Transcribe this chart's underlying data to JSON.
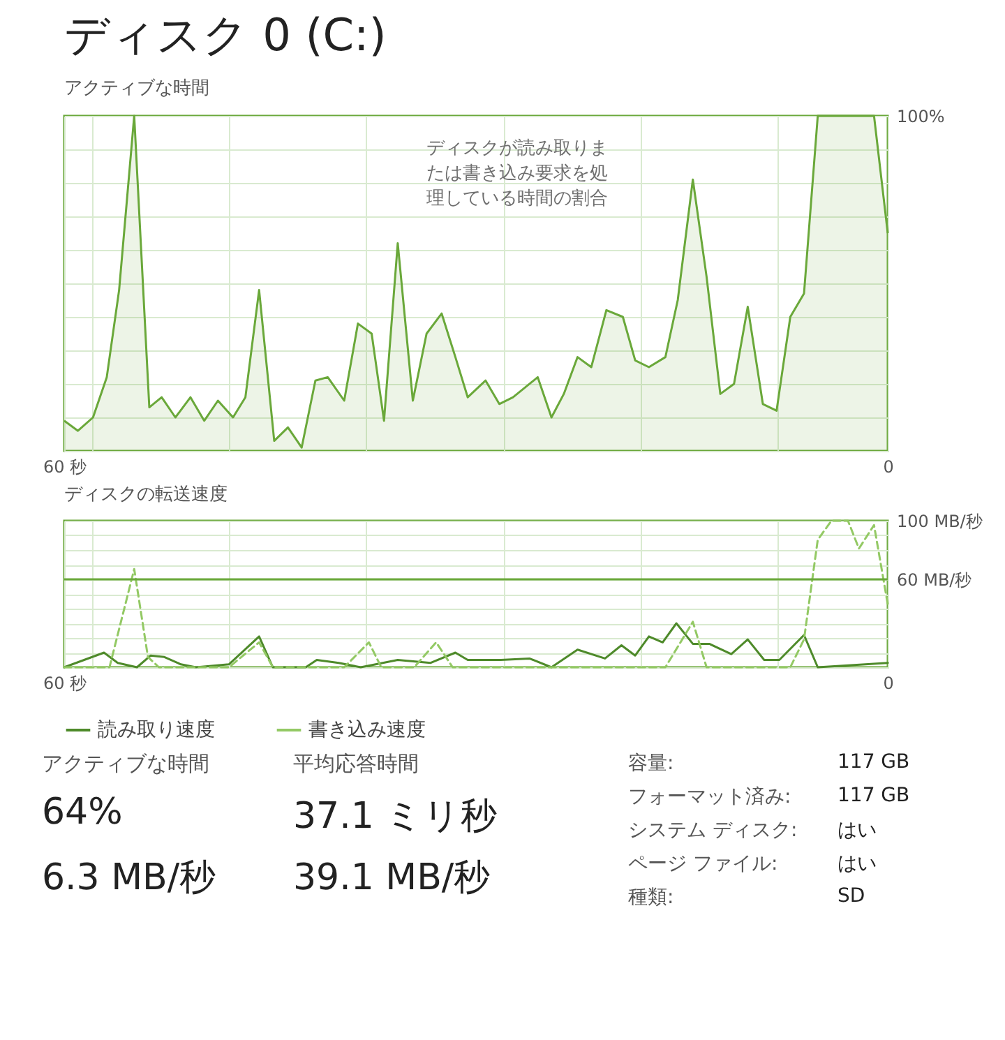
{
  "chart_data": [
    {
      "type": "area",
      "title": "ディスク 0 (C:)",
      "subtitle": "アクティブな時間",
      "annotations": [
        "ディスクが読み取りまたは書き込み要求を処理している時間の割合"
      ],
      "xlim": [
        60,
        0
      ],
      "xticks": [
        {
          "value": 60,
          "label": "60 秒"
        },
        {
          "value": 58,
          "label": null
        },
        {
          "value": 48,
          "label": null
        },
        {
          "value": 38,
          "label": null
        },
        {
          "value": 28,
          "label": null
        },
        {
          "value": 18,
          "label": null
        },
        {
          "value": 8,
          "label": null
        },
        0
      ],
      "ylim": [
        0,
        100
      ],
      "yticks": [
        {
          "value": 0,
          "label": null
        },
        {
          "value": 10,
          "label": null
        },
        {
          "value": 20,
          "label": null
        },
        {
          "value": 30,
          "label": null
        },
        {
          "value": 40,
          "label": null
        },
        {
          "value": 50,
          "label": null
        },
        {
          "value": 60,
          "label": null
        },
        {
          "value": 70,
          "label": null
        },
        {
          "value": 80,
          "label": null
        },
        {
          "value": 90,
          "label": null
        },
        {
          "value": 100,
          "label": "100%"
        }
      ],
      "grid": true,
      "series": [
        {
          "color": "#6aa83a",
          "x": [
            60,
            59,
            57.9,
            56.9,
            56,
            54.9,
            53.8,
            52.9,
            51.9,
            50.8,
            49.8,
            48.8,
            47.7,
            46.8,
            45.8,
            44.7,
            43.7,
            42.7,
            41.7,
            40.8,
            39.6,
            38.6,
            37.6,
            36.7,
            35.7,
            34.6,
            33.6,
            32.5,
            31.5,
            30.6,
            29.3,
            28.3,
            27.3,
            25.5,
            24.5,
            23.6,
            22.6,
            21.6,
            20.5,
            19.3,
            18.4,
            17.4,
            16.2,
            15.3,
            14.2,
            13.2,
            12.2,
            11.2,
            10.2,
            9.1,
            8.1,
            7.1,
            6.1,
            5.1,
            3.9,
            2.3,
            1,
            0
          ],
          "values": [
            9,
            6,
            10,
            22,
            48,
            100,
            13,
            16,
            10,
            16,
            9,
            15,
            10,
            16,
            48,
            3,
            7,
            1,
            21,
            22,
            15,
            38,
            35,
            9,
            62,
            15,
            35,
            41,
            28,
            16,
            21,
            14,
            16,
            22,
            10,
            17,
            28,
            25,
            42,
            40,
            27,
            25,
            28,
            45,
            81,
            52,
            17,
            20,
            43,
            14,
            12,
            40,
            47,
            100,
            100,
            100,
            100,
            65
          ]
        }
      ]
    },
    {
      "type": "line",
      "title": "ディスクの転送速度",
      "xlim": [
        60,
        0
      ],
      "xticks": [
        {
          "value": 60,
          "label": "60 秒"
        },
        {
          "value": 58,
          "label": null
        },
        {
          "value": 48,
          "label": null
        },
        {
          "value": 38,
          "label": null
        },
        {
          "value": 28,
          "label": null
        },
        {
          "value": 18,
          "label": null
        },
        {
          "value": 8,
          "label": null
        },
        0
      ],
      "ylim": [
        0,
        100
      ],
      "yticks": [
        {
          "value": 0,
          "label": null
        },
        {
          "value": 10,
          "label": null
        },
        {
          "value": 20,
          "label": null
        },
        {
          "value": 30,
          "label": null
        },
        {
          "value": 40,
          "label": null
        },
        {
          "value": 50,
          "label": null
        },
        {
          "value": 60,
          "label": "60 MB/秒"
        },
        {
          "value": 70,
          "label": null
        },
        {
          "value": 80,
          "label": null
        },
        {
          "value": 90,
          "label": null
        },
        {
          "value": 100,
          "label": "100 MB/秒"
        }
      ],
      "grid": true,
      "legend": "bottom",
      "ref_lines": [
        {
          "axis": "y",
          "value": 60,
          "color": "#6aa83a"
        }
      ],
      "series": [
        {
          "name": "読み取り速度",
          "color": "#4e8a2a",
          "line_style": "solid",
          "x": [
            60,
            57.1,
            56.1,
            54.7,
            53.7,
            52.7,
            51.5,
            50.4,
            48,
            45.8,
            44.8,
            42.4,
            41.6,
            40,
            38.4,
            35.7,
            33.3,
            31.5,
            30.6,
            28.2,
            26.1,
            24.5,
            22.6,
            20.6,
            19.4,
            18.4,
            17.4,
            16.4,
            15.4,
            14.2,
            13,
            11.4,
            10.2,
            9,
            7.9,
            6.1,
            5.1,
            0
          ],
          "values": [
            0,
            10,
            3,
            0,
            8,
            7,
            2,
            0,
            2,
            21,
            0,
            0,
            5,
            3,
            0,
            5,
            3,
            10,
            5,
            5,
            6,
            0,
            12,
            6,
            15,
            8,
            21,
            17,
            30,
            16,
            16,
            9,
            19,
            5,
            5,
            22,
            0,
            3
          ]
        },
        {
          "name": "書き込み速度",
          "color": "#93c964",
          "line_style": "dashed",
          "x": [
            60,
            56.7,
            54.9,
            53.9,
            53.1,
            48,
            45.8,
            44.8,
            39.6,
            37.8,
            36.9,
            34.5,
            32.9,
            31.7,
            16.2,
            14.2,
            13.2,
            7.1,
            6.1,
            5.1,
            4.1,
            2.9,
            2.1,
            1,
            0
          ],
          "values": [
            0,
            0,
            67,
            7,
            0,
            0,
            17,
            0,
            0,
            17,
            0,
            0,
            17,
            0,
            0,
            31,
            0,
            0,
            19,
            87,
            100,
            100,
            81,
            97,
            43
          ]
        }
      ]
    },
    {
      "type": "other",
      "annotations": [
        "アクティブな時間",
        "64%",
        "平均応答時間",
        "37.1 ミリ秒",
        "6.3 MB/秒",
        "39.1 MB/秒",
        "容量:",
        "117 GB",
        "フォーマット済み:",
        "117 GB",
        "システム ディスク:",
        "はい",
        "ページ ファイル:",
        "はい",
        "種類:",
        "SD"
      ]
    }
  ]
}
